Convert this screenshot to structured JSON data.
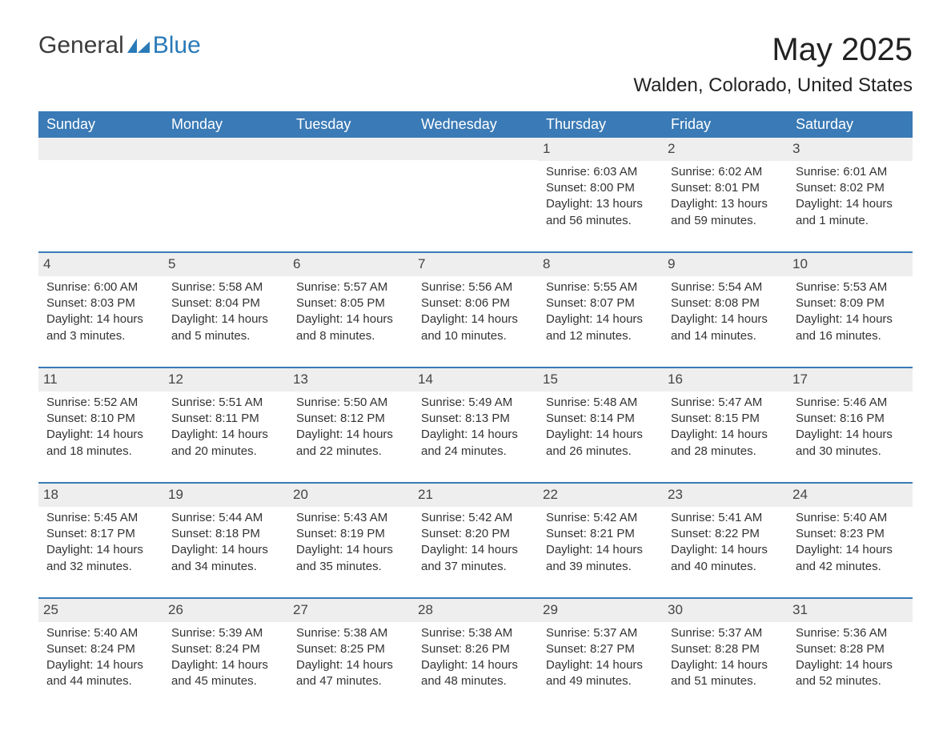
{
  "brand": {
    "text1": "General",
    "text2": "Blue",
    "icon_color": "#2a7ab8"
  },
  "title": "May 2025",
  "location": "Walden, Colorado, United States",
  "header_bg": "#3a7ab6",
  "header_fg": "#ffffff",
  "strip_bg": "#eeeeee",
  "border_color": "#3a7ab6",
  "text_color": "#333333",
  "day_headers": [
    "Sunday",
    "Monday",
    "Tuesday",
    "Wednesday",
    "Thursday",
    "Friday",
    "Saturday"
  ],
  "weeks": [
    [
      null,
      null,
      null,
      null,
      {
        "n": "1",
        "sr": "Sunrise: 6:03 AM",
        "ss": "Sunset: 8:00 PM",
        "dl": "Daylight: 13 hours and 56 minutes."
      },
      {
        "n": "2",
        "sr": "Sunrise: 6:02 AM",
        "ss": "Sunset: 8:01 PM",
        "dl": "Daylight: 13 hours and 59 minutes."
      },
      {
        "n": "3",
        "sr": "Sunrise: 6:01 AM",
        "ss": "Sunset: 8:02 PM",
        "dl": "Daylight: 14 hours and 1 minute."
      }
    ],
    [
      {
        "n": "4",
        "sr": "Sunrise: 6:00 AM",
        "ss": "Sunset: 8:03 PM",
        "dl": "Daylight: 14 hours and 3 minutes."
      },
      {
        "n": "5",
        "sr": "Sunrise: 5:58 AM",
        "ss": "Sunset: 8:04 PM",
        "dl": "Daylight: 14 hours and 5 minutes."
      },
      {
        "n": "6",
        "sr": "Sunrise: 5:57 AM",
        "ss": "Sunset: 8:05 PM",
        "dl": "Daylight: 14 hours and 8 minutes."
      },
      {
        "n": "7",
        "sr": "Sunrise: 5:56 AM",
        "ss": "Sunset: 8:06 PM",
        "dl": "Daylight: 14 hours and 10 minutes."
      },
      {
        "n": "8",
        "sr": "Sunrise: 5:55 AM",
        "ss": "Sunset: 8:07 PM",
        "dl": "Daylight: 14 hours and 12 minutes."
      },
      {
        "n": "9",
        "sr": "Sunrise: 5:54 AM",
        "ss": "Sunset: 8:08 PM",
        "dl": "Daylight: 14 hours and 14 minutes."
      },
      {
        "n": "10",
        "sr": "Sunrise: 5:53 AM",
        "ss": "Sunset: 8:09 PM",
        "dl": "Daylight: 14 hours and 16 minutes."
      }
    ],
    [
      {
        "n": "11",
        "sr": "Sunrise: 5:52 AM",
        "ss": "Sunset: 8:10 PM",
        "dl": "Daylight: 14 hours and 18 minutes."
      },
      {
        "n": "12",
        "sr": "Sunrise: 5:51 AM",
        "ss": "Sunset: 8:11 PM",
        "dl": "Daylight: 14 hours and 20 minutes."
      },
      {
        "n": "13",
        "sr": "Sunrise: 5:50 AM",
        "ss": "Sunset: 8:12 PM",
        "dl": "Daylight: 14 hours and 22 minutes."
      },
      {
        "n": "14",
        "sr": "Sunrise: 5:49 AM",
        "ss": "Sunset: 8:13 PM",
        "dl": "Daylight: 14 hours and 24 minutes."
      },
      {
        "n": "15",
        "sr": "Sunrise: 5:48 AM",
        "ss": "Sunset: 8:14 PM",
        "dl": "Daylight: 14 hours and 26 minutes."
      },
      {
        "n": "16",
        "sr": "Sunrise: 5:47 AM",
        "ss": "Sunset: 8:15 PM",
        "dl": "Daylight: 14 hours and 28 minutes."
      },
      {
        "n": "17",
        "sr": "Sunrise: 5:46 AM",
        "ss": "Sunset: 8:16 PM",
        "dl": "Daylight: 14 hours and 30 minutes."
      }
    ],
    [
      {
        "n": "18",
        "sr": "Sunrise: 5:45 AM",
        "ss": "Sunset: 8:17 PM",
        "dl": "Daylight: 14 hours and 32 minutes."
      },
      {
        "n": "19",
        "sr": "Sunrise: 5:44 AM",
        "ss": "Sunset: 8:18 PM",
        "dl": "Daylight: 14 hours and 34 minutes."
      },
      {
        "n": "20",
        "sr": "Sunrise: 5:43 AM",
        "ss": "Sunset: 8:19 PM",
        "dl": "Daylight: 14 hours and 35 minutes."
      },
      {
        "n": "21",
        "sr": "Sunrise: 5:42 AM",
        "ss": "Sunset: 8:20 PM",
        "dl": "Daylight: 14 hours and 37 minutes."
      },
      {
        "n": "22",
        "sr": "Sunrise: 5:42 AM",
        "ss": "Sunset: 8:21 PM",
        "dl": "Daylight: 14 hours and 39 minutes."
      },
      {
        "n": "23",
        "sr": "Sunrise: 5:41 AM",
        "ss": "Sunset: 8:22 PM",
        "dl": "Daylight: 14 hours and 40 minutes."
      },
      {
        "n": "24",
        "sr": "Sunrise: 5:40 AM",
        "ss": "Sunset: 8:23 PM",
        "dl": "Daylight: 14 hours and 42 minutes."
      }
    ],
    [
      {
        "n": "25",
        "sr": "Sunrise: 5:40 AM",
        "ss": "Sunset: 8:24 PM",
        "dl": "Daylight: 14 hours and 44 minutes."
      },
      {
        "n": "26",
        "sr": "Sunrise: 5:39 AM",
        "ss": "Sunset: 8:24 PM",
        "dl": "Daylight: 14 hours and 45 minutes."
      },
      {
        "n": "27",
        "sr": "Sunrise: 5:38 AM",
        "ss": "Sunset: 8:25 PM",
        "dl": "Daylight: 14 hours and 47 minutes."
      },
      {
        "n": "28",
        "sr": "Sunrise: 5:38 AM",
        "ss": "Sunset: 8:26 PM",
        "dl": "Daylight: 14 hours and 48 minutes."
      },
      {
        "n": "29",
        "sr": "Sunrise: 5:37 AM",
        "ss": "Sunset: 8:27 PM",
        "dl": "Daylight: 14 hours and 49 minutes."
      },
      {
        "n": "30",
        "sr": "Sunrise: 5:37 AM",
        "ss": "Sunset: 8:28 PM",
        "dl": "Daylight: 14 hours and 51 minutes."
      },
      {
        "n": "31",
        "sr": "Sunrise: 5:36 AM",
        "ss": "Sunset: 8:28 PM",
        "dl": "Daylight: 14 hours and 52 minutes."
      }
    ]
  ]
}
